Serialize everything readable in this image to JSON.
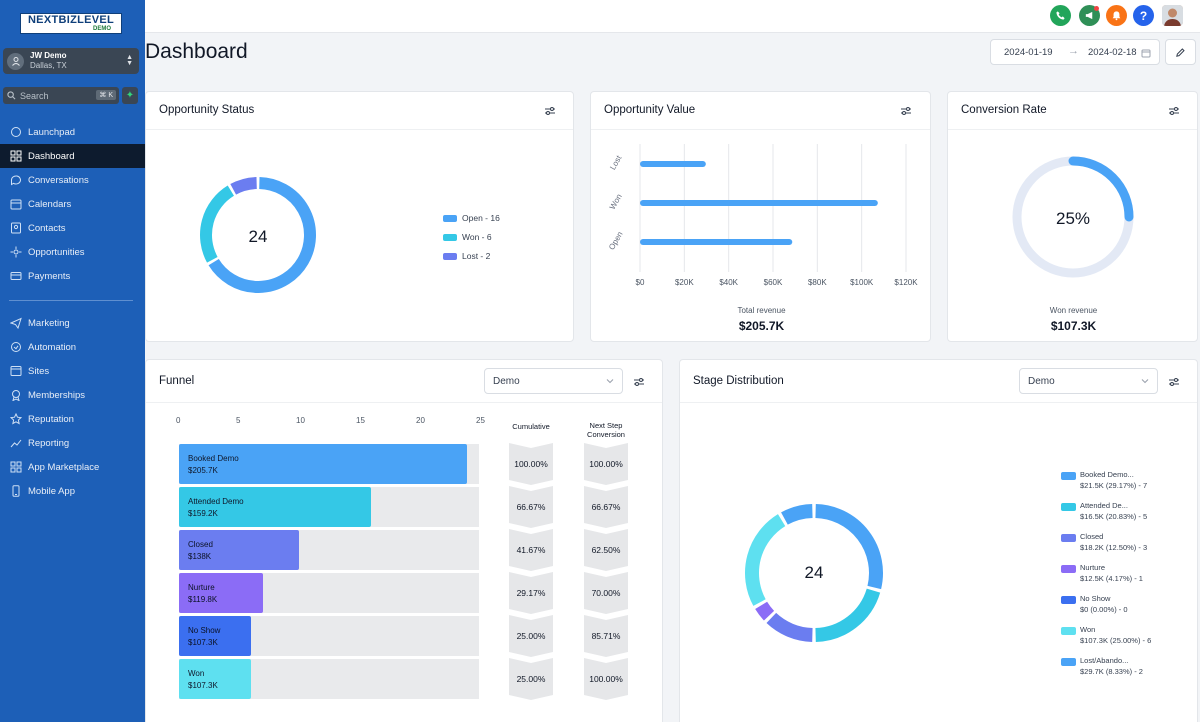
{
  "brand": {
    "line1": "NEXTBIZLEVEL",
    "line2": "DEMO"
  },
  "account": {
    "name": "JW Demo",
    "location": "Dallas, TX"
  },
  "search": {
    "placeholder": "Search",
    "shortcut": "⌘ K"
  },
  "nav": {
    "primary": [
      "Launchpad",
      "Dashboard",
      "Conversations",
      "Calendars",
      "Contacts",
      "Opportunities",
      "Payments"
    ],
    "secondary": [
      "Marketing",
      "Automation",
      "Sites",
      "Memberships",
      "Reputation",
      "Reporting",
      "App Marketplace",
      "Mobile App"
    ],
    "active": "Dashboard"
  },
  "page": {
    "title": "Dashboard",
    "date_from": "2024-01-19",
    "date_to": "2024-02-18"
  },
  "topbar": {
    "icons": [
      "phone-icon",
      "megaphone-icon",
      "bell-icon",
      "help-icon",
      "avatar"
    ],
    "colors": {
      "phone": "#22a55a",
      "megaphone": "#2f8f57",
      "bell": "#f97316",
      "help": "#2563eb"
    }
  },
  "opportunity_status": {
    "title": "Opportunity Status",
    "total": "24",
    "legend": [
      {
        "label": "Open - 16",
        "color": "#4aa3f6"
      },
      {
        "label": "Won - 6",
        "color": "#34c8e6"
      },
      {
        "label": "Lost - 2",
        "color": "#6b7df0"
      }
    ],
    "chart_data": {
      "type": "pie",
      "categories": [
        "Open",
        "Won",
        "Lost"
      ],
      "values": [
        16,
        6,
        2
      ],
      "center_label": "24"
    }
  },
  "opportunity_value": {
    "title": "Opportunity Value",
    "footer_label": "Total revenue",
    "footer_value": "$205.7K",
    "chart_data": {
      "type": "bar",
      "orientation": "horizontal",
      "categories": [
        "Lost",
        "Won",
        "Open"
      ],
      "values": [
        29700,
        107300,
        68700
      ],
      "xlim": [
        0,
        120000
      ],
      "x_ticks": [
        "$0",
        "$20K",
        "$40K",
        "$60K",
        "$80K",
        "$100K",
        "$120K"
      ],
      "color": "#4aa3f6"
    }
  },
  "conversion_rate": {
    "title": "Conversion Rate",
    "value": "25%",
    "footer_label": "Won revenue",
    "footer_value": "$107.3K",
    "chart_data": {
      "type": "pie",
      "values": [
        25,
        75
      ],
      "center_label": "25%"
    }
  },
  "funnel": {
    "title": "Funnel",
    "select": "Demo",
    "col_cumulative": "Cumulative",
    "col_next_step": "Next Step",
    "col_conversion": "Conversion",
    "axis_ticks": [
      "0",
      "5",
      "10",
      "15",
      "20",
      "25"
    ],
    "stages": [
      {
        "name": "Booked Demo",
        "value": "$205.7K",
        "count": 24,
        "color": "#4aa3f6",
        "cumulative": "100.00%",
        "next": "100.00%"
      },
      {
        "name": "Attended Demo",
        "value": "$159.2K",
        "count": 16,
        "color": "#34c8e6",
        "cumulative": "66.67%",
        "next": "66.67%"
      },
      {
        "name": "Closed",
        "value": "$138K",
        "count": 10,
        "color": "#6b7df0",
        "cumulative": "41.67%",
        "next": "62.50%"
      },
      {
        "name": "Nurture",
        "value": "$119.8K",
        "count": 7,
        "color": "#8b6cf6",
        "cumulative": "29.17%",
        "next": "70.00%"
      },
      {
        "name": "No Show",
        "value": "$107.3K",
        "count": 6,
        "color": "#3b6ff0",
        "cumulative": "25.00%",
        "next": "85.71%"
      },
      {
        "name": "Won",
        "value": "$107.3K",
        "count": 6,
        "color": "#5ee0f0",
        "cumulative": "25.00%",
        "next": "100.00%"
      }
    ],
    "chart_data": {
      "type": "bar",
      "orientation": "horizontal",
      "categories": [
        "Booked Demo",
        "Attended Demo",
        "Closed",
        "Nurture",
        "No Show",
        "Won"
      ],
      "values": [
        24,
        16,
        10,
        7,
        6,
        6
      ],
      "xlim": [
        0,
        25
      ]
    }
  },
  "stage_distribution": {
    "title": "Stage Distribution",
    "select": "Demo",
    "total": "24",
    "legend": [
      {
        "name": "Booked Demo...",
        "detail": "$21.5K (29.17%) - 7",
        "color": "#4aa3f6"
      },
      {
        "name": "Attended De...",
        "detail": "$16.5K (20.83%) - 5",
        "color": "#34c8e6"
      },
      {
        "name": "Closed",
        "detail": "$18.2K (12.50%) - 3",
        "color": "#6b7df0"
      },
      {
        "name": "Nurture",
        "detail": "$12.5K (4.17%) - 1",
        "color": "#8b6cf6"
      },
      {
        "name": "No Show",
        "detail": "$0 (0.00%) - 0",
        "color": "#3b6ff0"
      },
      {
        "name": "Won",
        "detail": "$107.3K (25.00%) - 6",
        "color": "#5ee0f0"
      },
      {
        "name": "Lost/Abando...",
        "detail": "$29.7K (8.33%) - 2",
        "color": "#4aa3f6"
      }
    ],
    "chart_data": {
      "type": "pie",
      "categories": [
        "Booked Demo",
        "Attended Demo",
        "Closed",
        "Nurture",
        "No Show",
        "Won",
        "Lost/Abandoned"
      ],
      "values": [
        7,
        5,
        3,
        1,
        0,
        6,
        2
      ],
      "center_label": "24"
    }
  }
}
